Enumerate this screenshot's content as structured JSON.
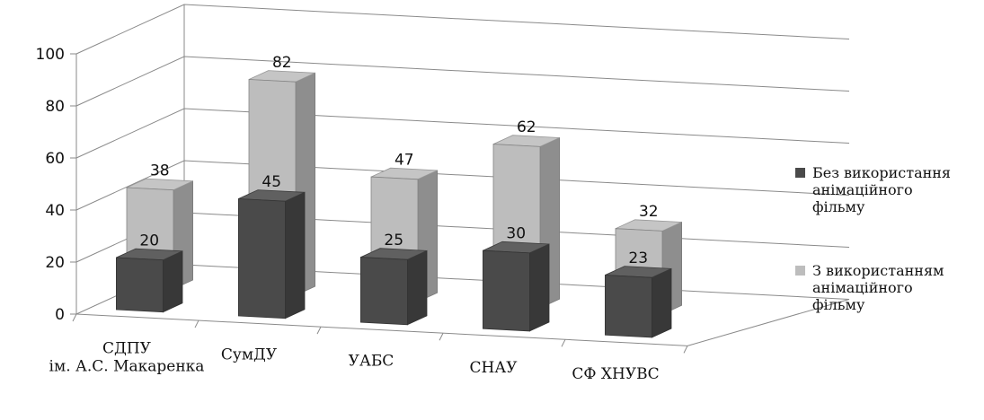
{
  "chart_data": {
    "type": "bar",
    "view": "3d-clustered-column",
    "categories": [
      "СДПУ|ім. А.С. Макаренка",
      "СумДУ",
      "УАБС",
      "СНАУ",
      "СФ ХНУВС"
    ],
    "series": [
      {
        "name": "Без використання|анімаційного|фільму",
        "values": [
          20,
          45,
          25,
          30,
          23
        ],
        "color": "#4a4a4a"
      },
      {
        "name": "З використанням|анімаційного|фільму",
        "values": [
          38,
          82,
          47,
          62,
          32
        ],
        "color": "#bdbdbd"
      }
    ],
    "yticks": [
      "0",
      "20",
      "40",
      "60",
      "80",
      "100"
    ],
    "ylim": [
      0,
      100
    ],
    "grid": true,
    "legend_position": "right",
    "title": "",
    "xlabel": "",
    "ylabel": ""
  }
}
